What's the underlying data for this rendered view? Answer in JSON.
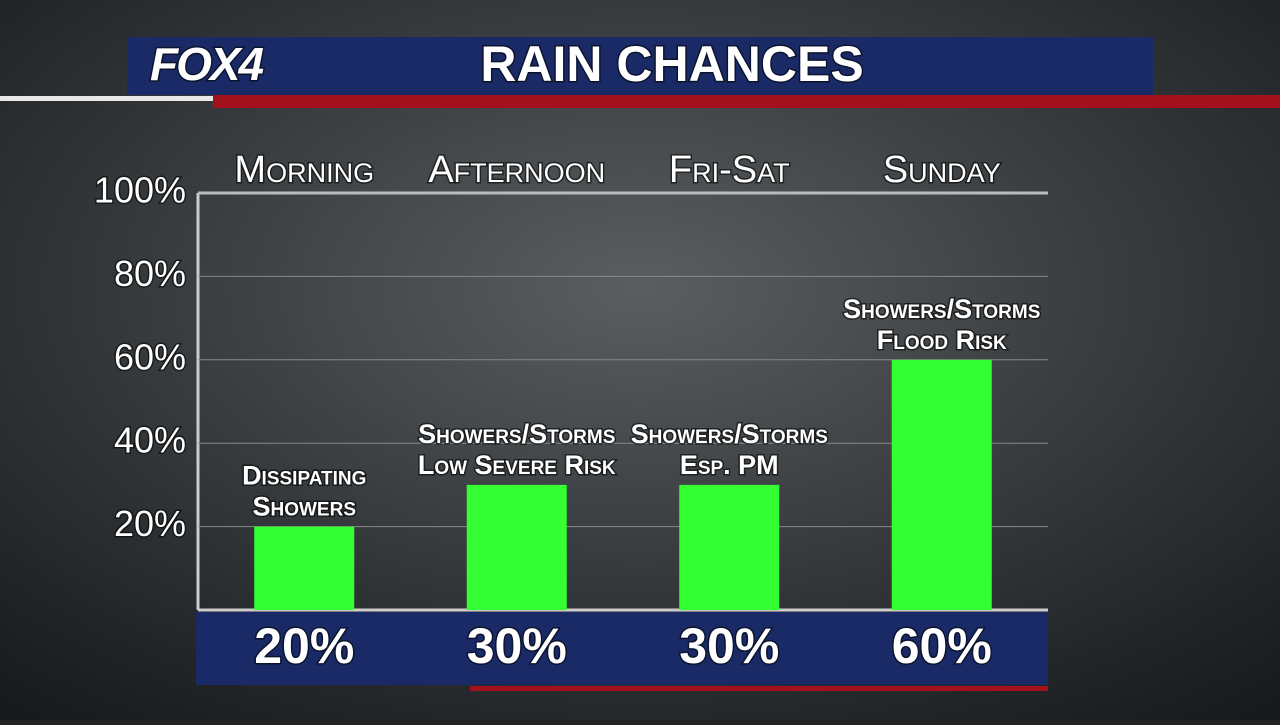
{
  "logo": "FOX4",
  "chart_data": {
    "type": "bar",
    "title": "RAIN CHANCES",
    "categories": [
      "Morning",
      "Afternoon",
      "Fri-Sat",
      "Sunday"
    ],
    "values": [
      20,
      30,
      30,
      60
    ],
    "value_labels": [
      "20%",
      "30%",
      "30%",
      "60%"
    ],
    "annotations": [
      [
        "Dissipating",
        "Showers"
      ],
      [
        "Showers/Storms",
        "Low Severe Risk"
      ],
      [
        "Showers/Storms",
        "Esp. PM"
      ],
      [
        "Showers/Storms",
        "Flood Risk"
      ]
    ],
    "color": "#33ff33",
    "ylim": [
      0,
      100
    ],
    "yticks": [
      {
        "value": 20,
        "label": "20%"
      },
      {
        "value": 40,
        "label": "40%"
      },
      {
        "value": 60,
        "label": "60%"
      },
      {
        "value": 80,
        "label": "80%"
      },
      {
        "value": 100,
        "label": "100%"
      }
    ],
    "grid": true
  }
}
